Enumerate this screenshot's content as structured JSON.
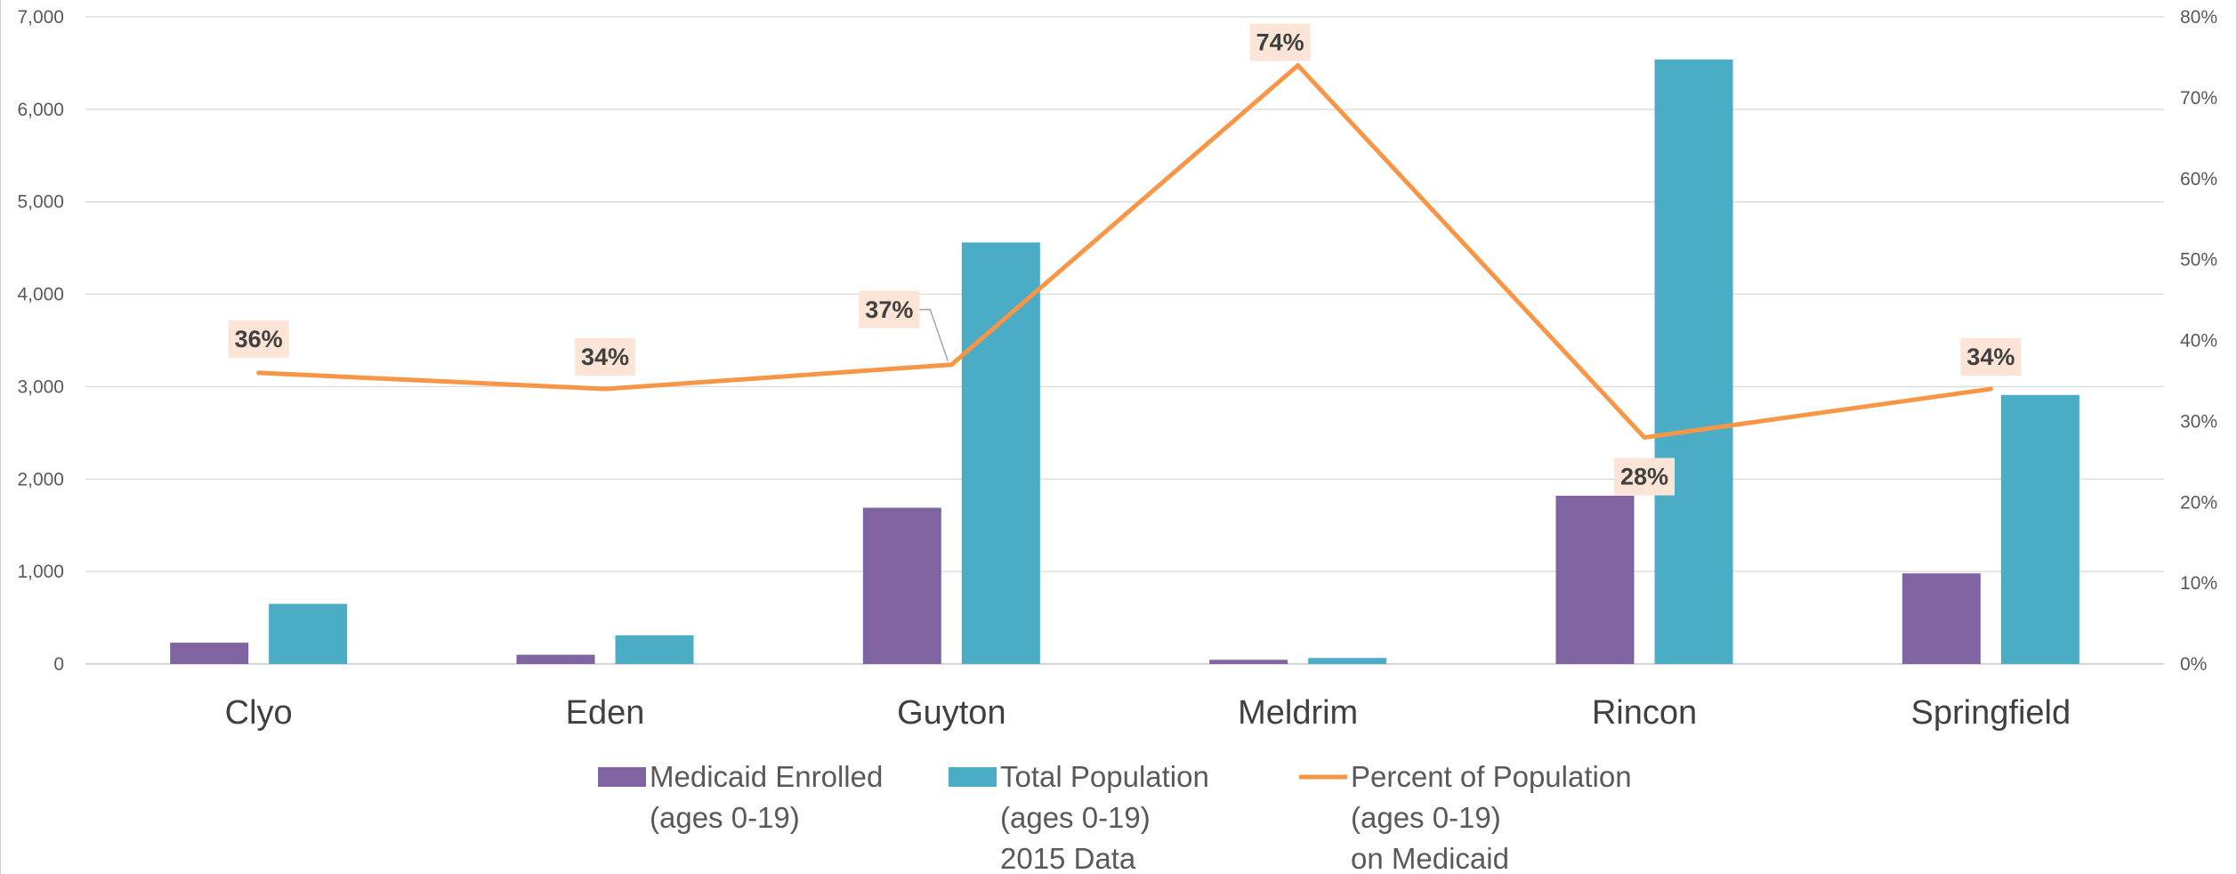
{
  "chart_data": {
    "type": "bar",
    "categories": [
      "Clyo",
      "Eden",
      "Guyton",
      "Meldrim",
      "Rincon",
      "Springfield"
    ],
    "series": [
      {
        "name": "Medicaid Enrolled (ages 0-19)",
        "kind": "bar",
        "axis": "left",
        "color": "#8064A2",
        "values": [
          230,
          100,
          1690,
          45,
          1820,
          980
        ]
      },
      {
        "name": "Total Population (ages 0-19) 2015 Data",
        "kind": "bar",
        "axis": "left",
        "color": "#4BACC6",
        "values": [
          650,
          310,
          4560,
          65,
          6540,
          2910
        ]
      },
      {
        "name": "Percent of Population (ages 0-19) on Medicaid",
        "kind": "line",
        "axis": "right",
        "color": "#F79646",
        "values": [
          36,
          34,
          37,
          74,
          28,
          34
        ],
        "data_labels": [
          "36%",
          "34%",
          "37%",
          "74%",
          "28%",
          "34%"
        ]
      }
    ],
    "y_left": {
      "ylim": [
        0,
        7000
      ],
      "ticks": [
        0,
        1000,
        2000,
        3000,
        4000,
        5000,
        6000,
        7000
      ],
      "tick_labels": [
        "0",
        "1,000",
        "2,000",
        "3,000",
        "4,000",
        "5,000",
        "6,000",
        "7,000"
      ]
    },
    "y_right": {
      "ylim": [
        0,
        80
      ],
      "ticks": [
        0,
        10,
        20,
        30,
        40,
        50,
        60,
        70,
        80
      ],
      "tick_labels": [
        "0%",
        "10%",
        "20%",
        "30%",
        "40%",
        "50%",
        "60%",
        "70%",
        "80%"
      ]
    },
    "grid": true,
    "legend": {
      "position": "bottom",
      "items": [
        {
          "lines": [
            "Medicaid Enrolled",
            "(ages 0-19)"
          ],
          "marker": "box",
          "color": "#8064A2"
        },
        {
          "lines": [
            "Total Population",
            "(ages 0-19)",
            "2015 Data"
          ],
          "marker": "box",
          "color": "#4BACC6"
        },
        {
          "lines": [
            "Percent of Population",
            "(ages 0-19)",
            "on Medicaid"
          ],
          "marker": "line",
          "color": "#F79646"
        }
      ]
    },
    "label_box_color": "#FCE4D6"
  }
}
